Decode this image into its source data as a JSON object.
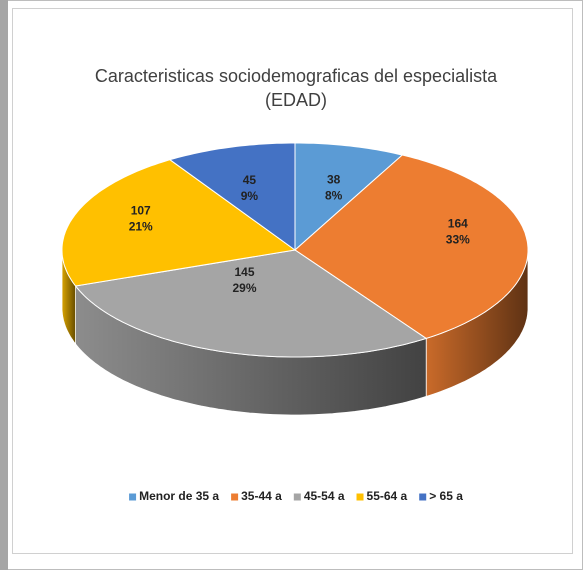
{
  "chart_data": {
    "type": "pie3d",
    "title": "Caracteristicas sociodemograficas del especialista",
    "subtitle": "(EDAD)",
    "categories": [
      "Menor de 35 a",
      "35-44 a",
      "45-54 a",
      "55-64 a",
      "> 65 a"
    ],
    "values": [
      38,
      164,
      145,
      107,
      45
    ],
    "percent_labels": [
      "8%",
      "33%",
      "29%",
      "21%",
      "9%"
    ],
    "colors": [
      "#5B9BD5",
      "#ED7D31",
      "#A5A5A5",
      "#FFC000",
      "#4472C4"
    ],
    "legend": "bottom"
  }
}
